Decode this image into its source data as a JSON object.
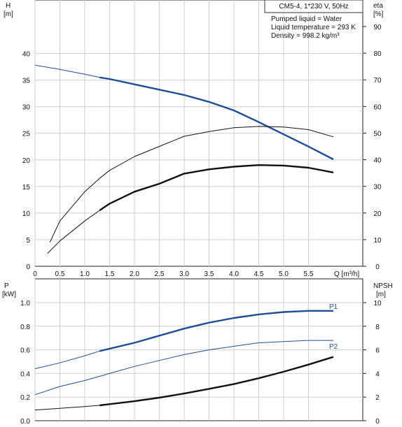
{
  "header": {
    "pump_label": "CM5-4, 1*230 V, 50Hz",
    "info_lines": [
      "Pumped liquid = Water",
      "Liquid temperature = 293 K",
      "Density = 998.2 kg/m³"
    ]
  },
  "chart_data": [
    {
      "type": "line",
      "panel": "top",
      "y_left_label": [
        "H",
        "[m]"
      ],
      "y_right_label": [
        "eta",
        "[%]"
      ],
      "x_label": "Q [m³/h]",
      "xlim": [
        0,
        6.0
      ],
      "x_ticks": [
        0,
        0.5,
        1.0,
        1.5,
        2.0,
        2.5,
        3.0,
        3.5,
        4.0,
        4.5,
        5.0,
        5.5
      ],
      "x_tick_labels": [
        "0",
        "0.5",
        "1.0",
        "1.5",
        "2.0",
        "2.5",
        "3.0",
        "3.5",
        "4.0",
        "4.5",
        "5.0",
        "5.5"
      ],
      "ylim": [
        0,
        45
      ],
      "y_ticks": [
        0,
        5,
        10,
        15,
        20,
        25,
        30,
        35,
        40
      ],
      "y2lim": [
        0,
        100
      ],
      "y2_ticks": [
        0,
        10,
        20,
        30,
        40,
        50,
        60,
        70,
        80,
        90
      ],
      "grid": true,
      "series": [
        {
          "axis": "left",
          "color": "#1f4e96",
          "x": [
            0,
            0.5,
            1.0,
            1.3,
            1.5,
            2.0,
            2.5,
            3.0,
            3.5,
            4.0,
            4.5,
            5.0,
            5.5,
            6.0
          ],
          "values": [
            37.8,
            37.0,
            36.1,
            35.5,
            35.2,
            34.2,
            33.2,
            32.2,
            30.9,
            29.3,
            27.1,
            24.8,
            22.5,
            20.1
          ],
          "highlight_from": 1.3
        },
        {
          "axis": "right",
          "color": "#111111",
          "thin": true,
          "x": [
            0.3,
            0.5,
            1.0,
            1.3,
            1.5,
            2.0,
            2.5,
            3.0,
            3.5,
            4.0,
            4.5,
            5.0,
            5.5,
            6.0
          ],
          "values": [
            9.0,
            17.0,
            28.0,
            33.0,
            36.0,
            41.2,
            45.0,
            48.8,
            50.6,
            52.0,
            52.5,
            52.3,
            51.3,
            48.6
          ]
        },
        {
          "axis": "right",
          "color": "#111111",
          "x": [
            0.25,
            0.5,
            1.0,
            1.3,
            1.5,
            2.0,
            2.5,
            3.0,
            3.5,
            4.0,
            4.5,
            5.0,
            5.5,
            6.0
          ],
          "values": [
            4.8,
            9.5,
            17.0,
            21.0,
            23.5,
            28.0,
            31.0,
            34.8,
            36.4,
            37.4,
            38.0,
            37.8,
            37.0,
            35.2
          ],
          "highlight_from": 1.3
        }
      ]
    },
    {
      "type": "line",
      "panel": "bottom",
      "y_left_label": [
        "P",
        "[kW]"
      ],
      "y_right_label": [
        "NPSH",
        "[m]"
      ],
      "xlim": [
        0,
        6.0
      ],
      "ylim": [
        0,
        1.0
      ],
      "y_ticks": [
        0.0,
        0.2,
        0.4,
        0.6,
        0.8,
        1.0
      ],
      "y_tick_labels": [
        "0.0",
        "0.2",
        "0.4",
        "0.6",
        "0.8",
        "1.0"
      ],
      "y2lim": [
        0,
        10
      ],
      "y2_ticks": [
        0,
        2,
        4,
        6,
        8,
        10
      ],
      "grid": true,
      "series": [
        {
          "name": "P1",
          "axis": "left",
          "color": "#1f4e96",
          "x": [
            0,
            0.5,
            1.0,
            1.3,
            1.5,
            2.0,
            2.5,
            3.0,
            3.5,
            4.0,
            4.5,
            5.0,
            5.5,
            6.0
          ],
          "values": [
            0.44,
            0.49,
            0.55,
            0.59,
            0.61,
            0.66,
            0.72,
            0.78,
            0.83,
            0.87,
            0.9,
            0.92,
            0.93,
            0.93
          ],
          "highlight_from": 1.3
        },
        {
          "name": "P2",
          "axis": "left",
          "color": "#1f4e96",
          "thin": true,
          "x": [
            0,
            0.5,
            1.0,
            1.5,
            2.0,
            2.5,
            3.0,
            3.5,
            4.0,
            4.5,
            5.0,
            5.5,
            6.0
          ],
          "values": [
            0.22,
            0.29,
            0.34,
            0.4,
            0.46,
            0.51,
            0.56,
            0.6,
            0.63,
            0.66,
            0.67,
            0.68,
            0.68
          ]
        },
        {
          "axis": "right",
          "color": "#111111",
          "x": [
            0,
            0.5,
            1.0,
            1.3,
            1.5,
            2.0,
            2.5,
            3.0,
            3.5,
            4.0,
            4.5,
            5.0,
            5.5,
            6.0
          ],
          "values": [
            0.9,
            1.05,
            1.2,
            1.3,
            1.4,
            1.65,
            1.95,
            2.3,
            2.7,
            3.1,
            3.6,
            4.15,
            4.75,
            5.4
          ],
          "highlight_from": 1.3
        }
      ]
    }
  ]
}
